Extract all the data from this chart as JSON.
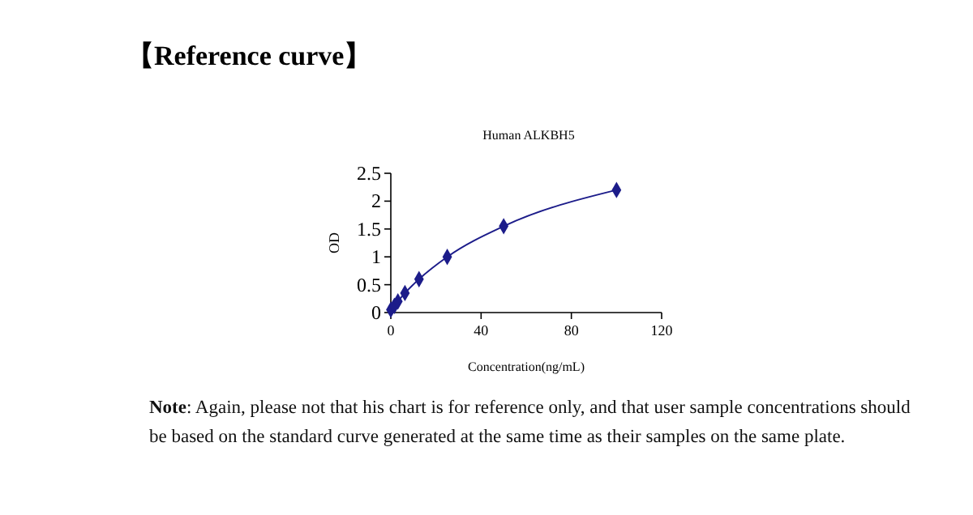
{
  "chart_data": {
    "type": "line",
    "title": "【Reference curve】",
    "subtitle": "Human ALKBH5",
    "xlabel": "Concentration(ng/mL)",
    "ylabel": "OD",
    "x": [
      0,
      1.56,
      3.13,
      6.25,
      12.5,
      25,
      50,
      100
    ],
    "series": [
      {
        "color": "#1c1c8a",
        "values": [
          0.05,
          0.12,
          0.2,
          0.35,
          0.6,
          1.0,
          1.55,
          2.2
        ]
      }
    ],
    "xlim": [
      0,
      120
    ],
    "xticks": [
      0,
      40,
      80,
      120
    ],
    "ylim": [
      0,
      2.5
    ],
    "yticks": [
      0,
      {
        "value": 0.5,
        "label": "0.5"
      },
      1,
      {
        "value": 1.5,
        "label": "1.5"
      },
      2,
      {
        "value": 2.5,
        "label": "2.5"
      }
    ],
    "grid": false,
    "marker": "diamond",
    "line_style": "solid",
    "annotations": [
      "Note: Again, please not that his chart is for reference only, and that user sample concentrations should be based on the standard curve generated at the same time as their samples on the same plate."
    ]
  }
}
